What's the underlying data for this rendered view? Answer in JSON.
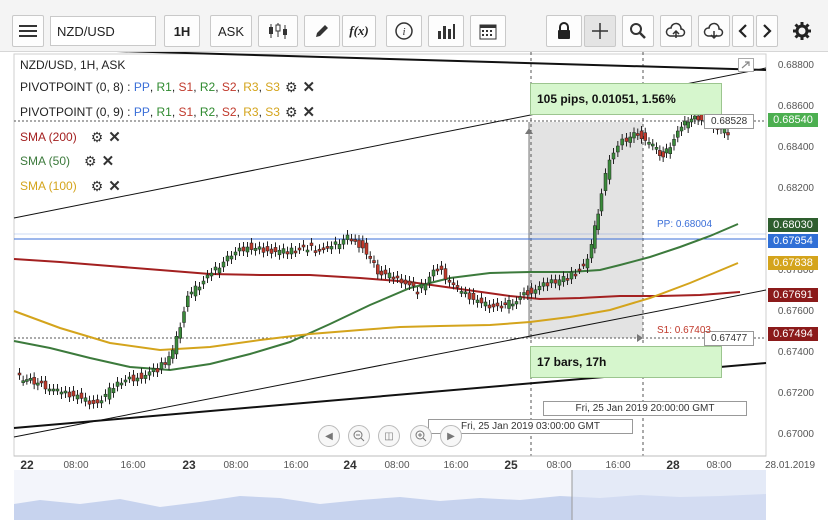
{
  "toolbar": {
    "symbol_value": "NZD/USD",
    "timeframe": "1H",
    "price_type": "ASK",
    "icons": [
      "menu-icon",
      "candles-icon",
      "pencil-icon",
      "fx-icon",
      "info-icon",
      "bars-icon",
      "calendar-icon",
      "lock-icon",
      "crosshair-icon",
      "zoom-icon",
      "upload-icon",
      "download-icon",
      "chevron-left-icon",
      "chevron-right-icon",
      "gear-icon"
    ]
  },
  "chart": {
    "title": "NZD/USD, 1H, ASK",
    "indicators": [
      {
        "name": "PIVOTPOINT (0, 8)",
        "levels": [
          "PP",
          "R1",
          "S1",
          "R2",
          "S2",
          "R3",
          "S3"
        ],
        "color": "#000000"
      },
      {
        "name": "PIVOTPOINT (0, 9)",
        "levels": [
          "PP",
          "R1",
          "S1",
          "R2",
          "S2",
          "R3",
          "S3"
        ],
        "color": "#000000"
      },
      {
        "name": "SMA (200)",
        "color": "#a32020"
      },
      {
        "name": "SMA (50)",
        "color": "#3c7a3c"
      },
      {
        "name": "SMA (100)",
        "color": "#d4a41c"
      }
    ],
    "level_colors": {
      "PP": "#3b6fd8",
      "R1": "#2f8a2f",
      "S1": "#c0392b",
      "R2": "#2f8a2f",
      "S2": "#c0392b",
      "R3": "#d4a41c",
      "S3": "#d4a41c"
    },
    "measure": {
      "pips_text": "105 pips, 0.01051, 1.56%",
      "bars_text": "17 bars, 17h"
    },
    "price_axis": [
      "0.68800",
      "0.68600",
      "0.68400",
      "0.68200",
      "0.68000",
      "0.67800",
      "0.67600",
      "0.67400",
      "0.67200",
      "0.67000"
    ],
    "price_tags": [
      {
        "label": "0.68540",
        "color": "#4caf50"
      },
      {
        "label": "0.68030",
        "color": "#2e5e2e"
      },
      {
        "label": "0.67954",
        "color": "#2f6fd6"
      },
      {
        "label": "0.67838",
        "color": "#d4a41c"
      },
      {
        "label": "0.67691",
        "color": "#8b1a1a"
      },
      {
        "label": "0.67494",
        "color": "#8b1a1a"
      }
    ],
    "inline_labels": {
      "high_marker": "0.68528",
      "low_marker": "0.67477",
      "pp_label": "PP: 0.68004",
      "s1_label": "S1: 0.67403"
    },
    "crosshair_times": [
      "Fri, 25 Jan 2019 20:00:00 GMT",
      "Fri, 25 Jan 2019 03:00:00 GMT"
    ],
    "time_axis": [
      {
        "label": "22",
        "bold": true
      },
      {
        "label": "08:00"
      },
      {
        "label": "16:00"
      },
      {
        "label": "23",
        "bold": true
      },
      {
        "label": "08:00"
      },
      {
        "label": "16:00"
      },
      {
        "label": "24",
        "bold": true
      },
      {
        "label": "08:00"
      },
      {
        "label": "16:00"
      },
      {
        "label": "25",
        "bold": true
      },
      {
        "label": "08:00"
      },
      {
        "label": "16:00"
      },
      {
        "label": "28",
        "bold": true
      },
      {
        "label": "08:00"
      },
      {
        "label": "28.01.2019"
      }
    ],
    "nav_buttons": [
      "scroll-left-icon",
      "zoom-out-icon",
      "reset-icon",
      "zoom-in-icon",
      "scroll-right-icon"
    ]
  }
}
